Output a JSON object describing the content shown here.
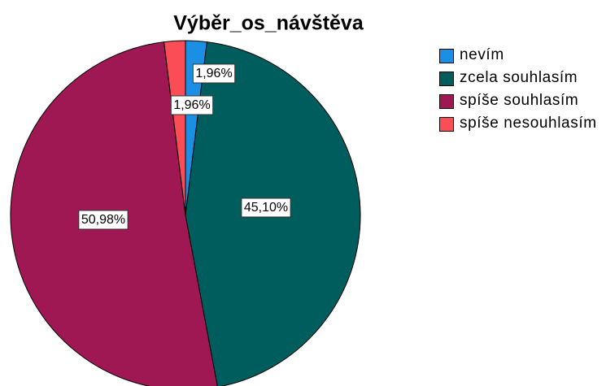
{
  "chart_data": {
    "type": "pie",
    "title": "Výběr_os_návštěva",
    "categories": [
      "nevím",
      "zcela souhlasím",
      "spíše souhlasím",
      "spíše nesouhlasím"
    ],
    "values": [
      1.96,
      45.1,
      50.98,
      1.96
    ],
    "value_labels": [
      "1,96%",
      "45,10%",
      "50,98%",
      "1,96%"
    ],
    "colors": [
      "#1a8fe3",
      "#005d5d",
      "#9f1853",
      "#fa4d56"
    ],
    "legend": "right"
  }
}
